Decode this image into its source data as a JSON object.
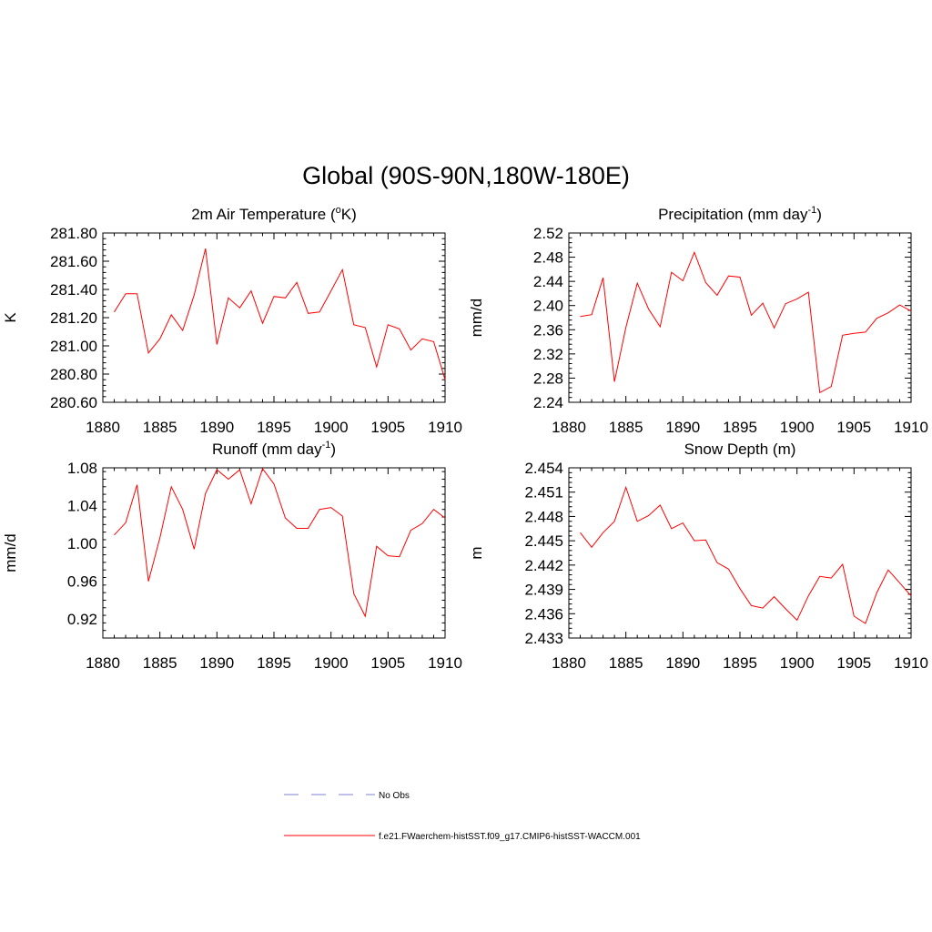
{
  "figure": {
    "title": "Global (90S-90N,180W-180E)"
  },
  "legend": {
    "items": [
      {
        "label": "No Obs",
        "color": "#9999dd",
        "dash": true
      },
      {
        "label": "f.e21.FWaerchem-histSST.f09_g17.CMIP6-histSST-WACCM.001",
        "color": "#ff0000",
        "dash": false
      }
    ]
  },
  "chart_data": [
    {
      "type": "line",
      "title": "2m Air Temperature (",
      "title_sup": "o",
      "title_end": "K)",
      "xlabel": "",
      "ylabel": "K",
      "xlim": [
        1880,
        1910
      ],
      "ylim": [
        280.6,
        281.8
      ],
      "xticks": [
        1880,
        1885,
        1890,
        1895,
        1900,
        1905,
        1910
      ],
      "yticks": [
        280.6,
        280.8,
        281.0,
        281.2,
        281.4,
        281.6,
        281.8
      ],
      "ytick_labels": [
        "280.60",
        "280.80",
        "281.00",
        "281.20",
        "281.40",
        "281.60",
        "281.80"
      ],
      "color": "#ff0000",
      "x": [
        1881,
        1882,
        1883,
        1884,
        1885,
        1886,
        1887,
        1888,
        1889,
        1890,
        1891,
        1892,
        1893,
        1894,
        1895,
        1896,
        1897,
        1898,
        1899,
        1900,
        1901,
        1902,
        1903,
        1904,
        1905,
        1906,
        1907,
        1908,
        1909,
        1910
      ],
      "y": [
        281.24,
        281.37,
        281.37,
        280.95,
        281.05,
        281.22,
        281.11,
        281.36,
        281.69,
        281.01,
        281.34,
        281.27,
        281.39,
        281.16,
        281.35,
        281.34,
        281.45,
        281.23,
        281.24,
        281.39,
        281.54,
        281.15,
        281.13,
        280.85,
        281.15,
        281.12,
        280.97,
        281.05,
        281.03,
        280.76
      ]
    },
    {
      "type": "line",
      "title": "Precipitation (mm day",
      "title_sup": "-1",
      "title_end": ")",
      "xlabel": "",
      "ylabel": "mm/d",
      "xlim": [
        1880,
        1910
      ],
      "ylim": [
        2.24,
        2.52
      ],
      "xticks": [
        1880,
        1885,
        1890,
        1895,
        1900,
        1905,
        1910
      ],
      "yticks": [
        2.24,
        2.28,
        2.32,
        2.36,
        2.4,
        2.44,
        2.48,
        2.52
      ],
      "ytick_labels": [
        "2.24",
        "2.28",
        "2.32",
        "2.36",
        "2.40",
        "2.44",
        "2.48",
        "2.52"
      ],
      "color": "#ff0000",
      "x": [
        1881,
        1882,
        1883,
        1884,
        1885,
        1886,
        1887,
        1888,
        1889,
        1890,
        1891,
        1892,
        1893,
        1894,
        1895,
        1896,
        1897,
        1898,
        1899,
        1900,
        1901,
        1902,
        1903,
        1904,
        1905,
        1906,
        1907,
        1908,
        1909,
        1910
      ],
      "y": [
        2.382,
        2.385,
        2.446,
        2.274,
        2.364,
        2.437,
        2.394,
        2.365,
        2.455,
        2.441,
        2.488,
        2.438,
        2.417,
        2.449,
        2.447,
        2.384,
        2.404,
        2.363,
        2.403,
        2.411,
        2.422,
        2.256,
        2.266,
        2.351,
        2.354,
        2.356,
        2.379,
        2.388,
        2.401,
        2.391
      ]
    },
    {
      "type": "line",
      "title": "Runoff (mm day",
      "title_sup": "-1",
      "title_end": ")",
      "xlabel": "",
      "ylabel": "mm/d",
      "xlim": [
        1880,
        1910
      ],
      "ylim": [
        0.9,
        1.08
      ],
      "xticks": [
        1880,
        1885,
        1890,
        1895,
        1900,
        1905,
        1910
      ],
      "yticks": [
        0.92,
        0.96,
        1.0,
        1.04,
        1.08
      ],
      "ytick_labels": [
        "0.92",
        "0.96",
        "1.00",
        "1.04",
        "1.08"
      ],
      "color": "#ff0000",
      "x": [
        1881,
        1882,
        1883,
        1884,
        1885,
        1886,
        1887,
        1888,
        1889,
        1890,
        1891,
        1892,
        1893,
        1894,
        1895,
        1896,
        1897,
        1898,
        1899,
        1900,
        1901,
        1902,
        1903,
        1904,
        1905,
        1906,
        1907,
        1908,
        1909,
        1910
      ],
      "y": [
        1.009,
        1.022,
        1.062,
        0.96,
        1.006,
        1.06,
        1.036,
        0.994,
        1.053,
        1.078,
        1.068,
        1.078,
        1.042,
        1.079,
        1.063,
        1.027,
        1.016,
        1.016,
        1.036,
        1.038,
        1.029,
        0.947,
        0.923,
        0.997,
        0.987,
        0.986,
        1.014,
        1.021,
        1.036,
        1.027
      ]
    },
    {
      "type": "line",
      "title": "Snow Depth (m)",
      "title_sup": "",
      "title_end": "",
      "xlabel": "",
      "ylabel": "m",
      "xlim": [
        1880,
        1910
      ],
      "ylim": [
        2.433,
        2.454
      ],
      "xticks": [
        1880,
        1885,
        1890,
        1895,
        1900,
        1905,
        1910
      ],
      "yticks": [
        2.433,
        2.436,
        2.439,
        2.442,
        2.445,
        2.448,
        2.451,
        2.454
      ],
      "ytick_labels": [
        "2.433",
        "2.436",
        "2.439",
        "2.442",
        "2.445",
        "2.448",
        "2.451",
        "2.454"
      ],
      "color": "#ff0000",
      "x": [
        1881,
        1882,
        1883,
        1884,
        1885,
        1886,
        1887,
        1888,
        1889,
        1890,
        1891,
        1892,
        1893,
        1894,
        1895,
        1896,
        1897,
        1898,
        1899,
        1900,
        1901,
        1902,
        1903,
        1904,
        1905,
        1906,
        1907,
        1908,
        1909,
        1910
      ],
      "y": [
        2.446,
        2.4442,
        2.446,
        2.4474,
        2.4516,
        2.4474,
        2.4481,
        2.4494,
        2.4465,
        2.4472,
        2.445,
        2.4451,
        2.4423,
        2.4415,
        2.4391,
        2.437,
        2.4367,
        2.4381,
        2.4366,
        2.4352,
        2.4382,
        2.4406,
        2.4404,
        2.4421,
        2.4357,
        2.4348,
        2.4386,
        2.4414,
        2.4398,
        2.4382
      ]
    }
  ]
}
